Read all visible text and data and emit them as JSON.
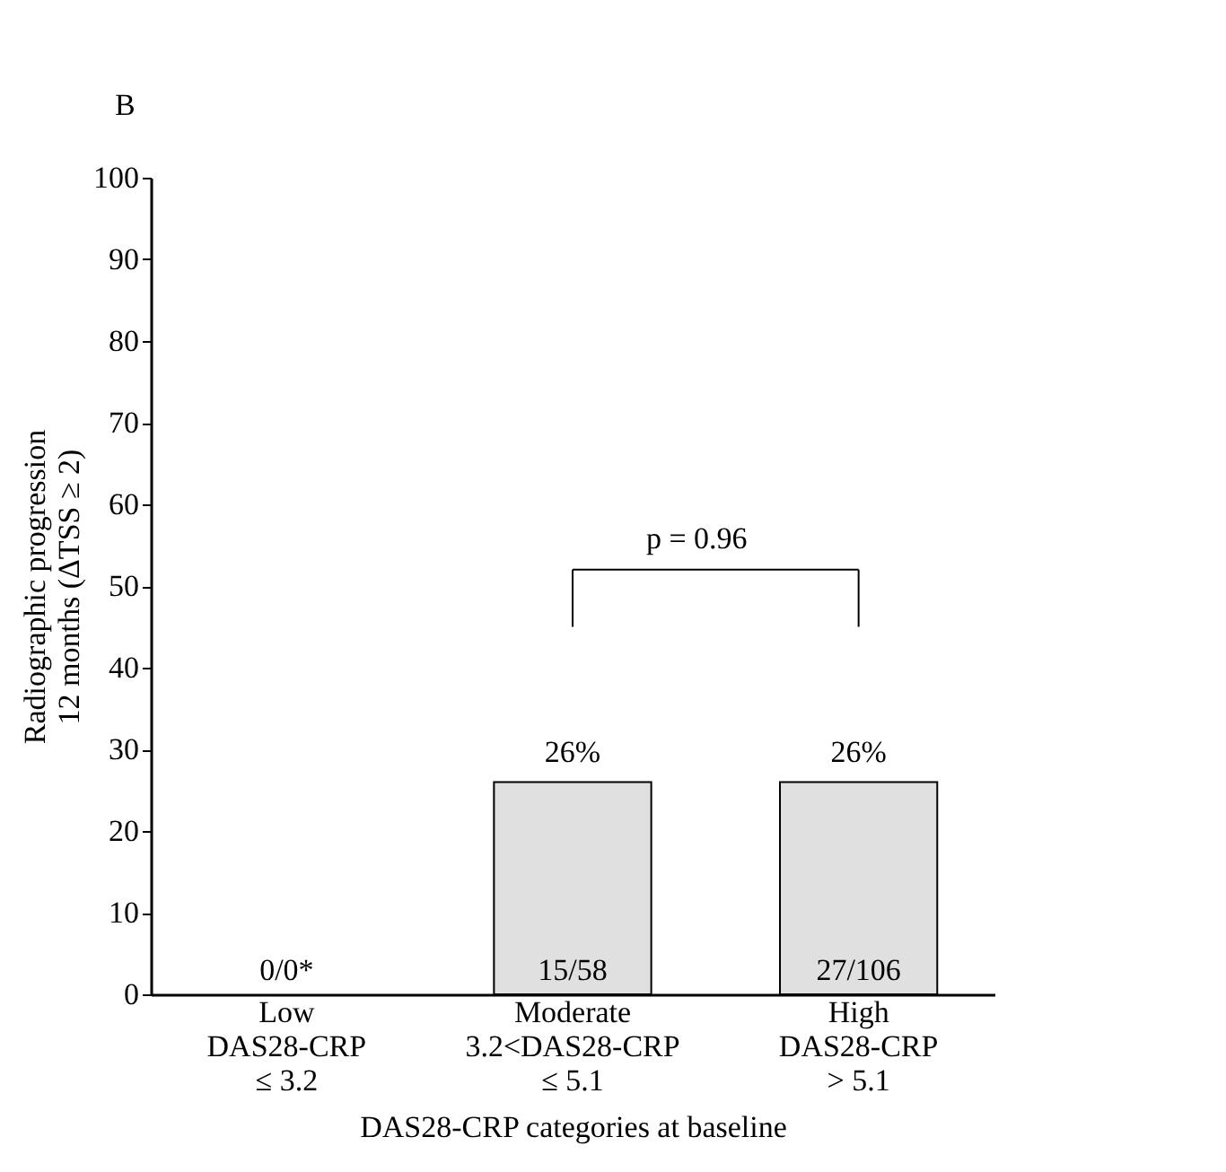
{
  "chart_data": {
    "type": "bar",
    "categories": [
      "Low\nDAS28-CRP\n≤ 3.2",
      "Moderate\n3.2<DAS28-CRP\n≤ 5.1",
      "High\nDAS28-CRP\n> 5.1"
    ],
    "values": [
      0,
      26,
      26
    ],
    "value_labels": [
      null,
      "26%",
      "26%"
    ],
    "color": "#e0e0e0",
    "xlabel": "DAS28-CRP categories at baseline",
    "ylabel": "Radiographic progression\n12 months (ΔTSS ≥ 2)",
    "ylim": [
      0,
      100
    ],
    "yticks": [
      0,
      10,
      20,
      30,
      40,
      50,
      60,
      70,
      80,
      90,
      100
    ],
    "grid": false,
    "annotations": [
      "B",
      "0/0*",
      "15/58",
      "27/106",
      "p = 0.96"
    ]
  }
}
